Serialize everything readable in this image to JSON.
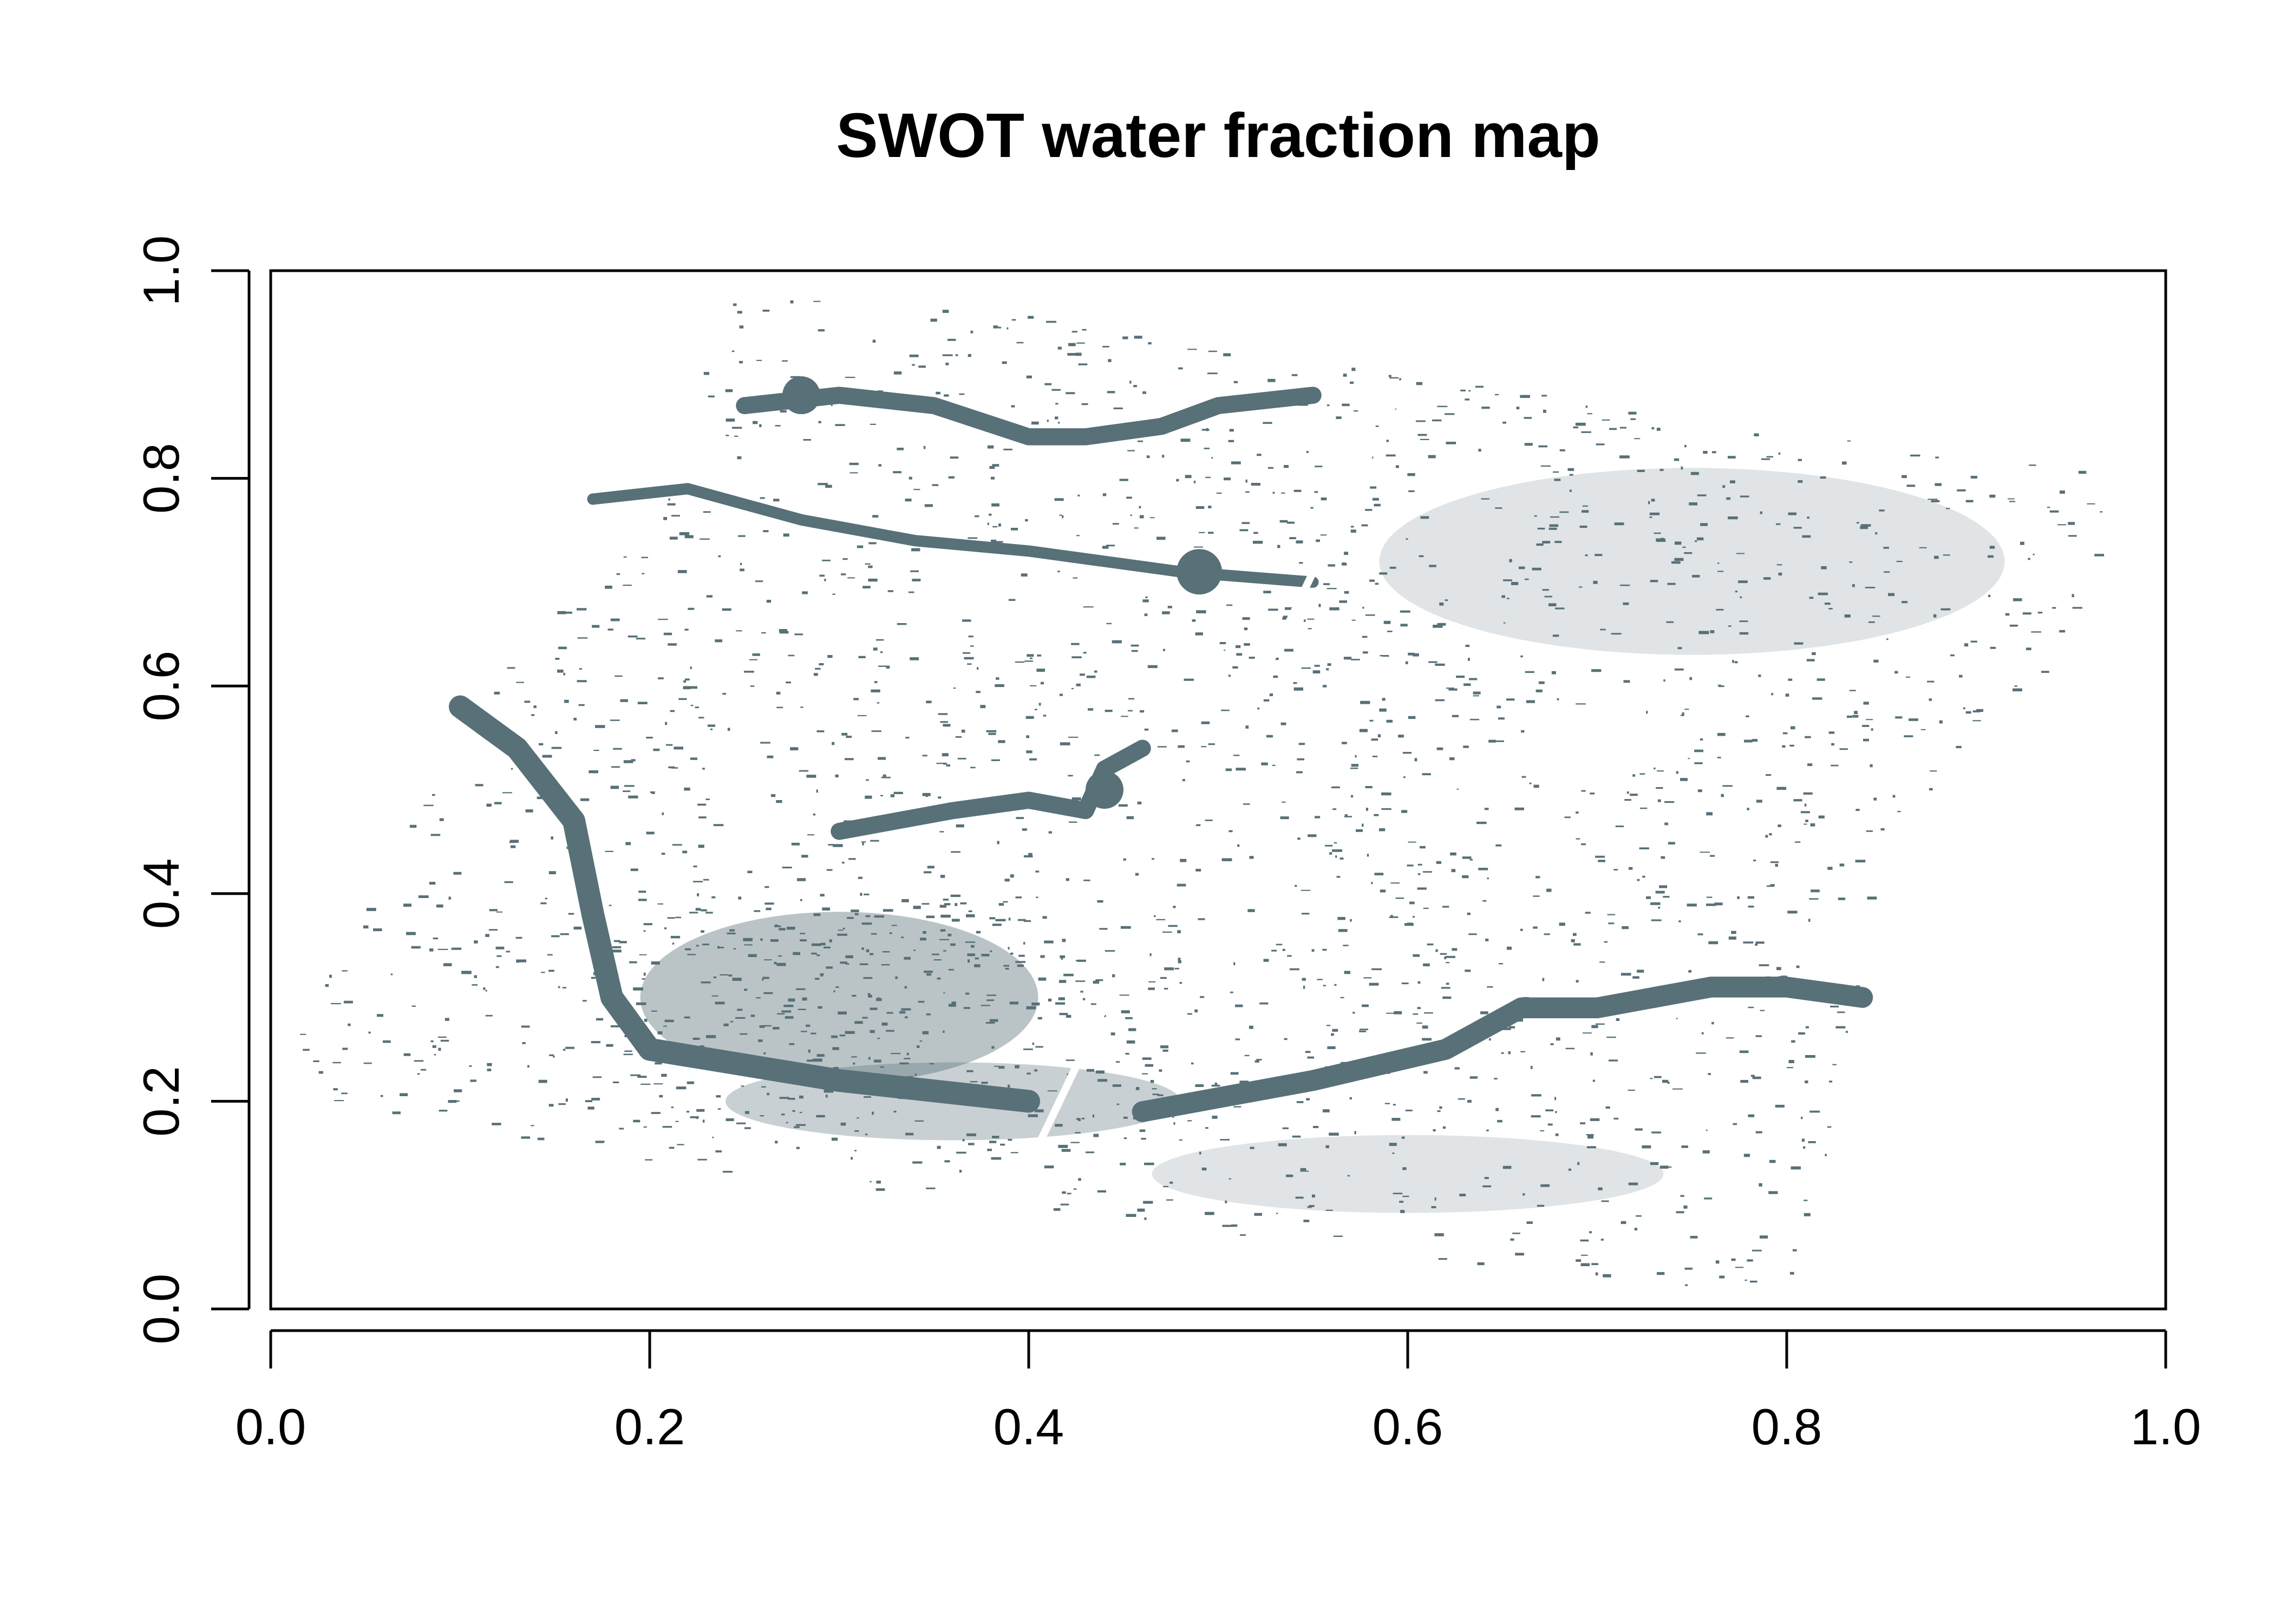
{
  "chart_data": {
    "type": "heatmap",
    "title": "SWOT water fraction map",
    "xlabel": "",
    "ylabel": "",
    "xlim": [
      0,
      1
    ],
    "ylim": [
      0,
      1
    ],
    "x_ticks": [
      "0.0",
      "0.2",
      "0.4",
      "0.6",
      "0.8",
      "1.0"
    ],
    "y_ticks": [
      "0.0",
      "0.2",
      "0.4",
      "0.6",
      "0.8",
      "1.0"
    ],
    "grid": false,
    "legend": "none",
    "colors": {
      "water": "#587078",
      "background": "#ffffff"
    },
    "swath_outline": [
      [
        0.0,
        0.21
      ],
      [
        0.1,
        0.58
      ],
      [
        0.2,
        0.76
      ],
      [
        0.24,
        0.97
      ],
      [
        0.32,
        0.98
      ],
      [
        0.6,
        0.9
      ],
      [
        0.86,
        0.83
      ],
      [
        0.99,
        0.8
      ],
      [
        0.93,
        0.6
      ],
      [
        0.85,
        0.45
      ],
      [
        0.84,
        0.3
      ],
      [
        0.82,
        0.14
      ],
      [
        0.8,
        0.01
      ],
      [
        0.6,
        0.05
      ],
      [
        0.39,
        0.1
      ],
      [
        0.2,
        0.14
      ]
    ],
    "rivers": [
      {
        "points": [
          [
            0.1,
            0.58
          ],
          [
            0.13,
            0.54
          ],
          [
            0.16,
            0.47
          ],
          [
            0.17,
            0.38
          ],
          [
            0.18,
            0.3
          ],
          [
            0.2,
            0.25
          ],
          [
            0.3,
            0.22
          ],
          [
            0.4,
            0.2
          ]
        ],
        "width": 0.012
      },
      {
        "points": [
          [
            0.46,
            0.19
          ],
          [
            0.55,
            0.22
          ],
          [
            0.62,
            0.25
          ],
          [
            0.66,
            0.29
          ],
          [
            0.7,
            0.29
          ],
          [
            0.76,
            0.31
          ],
          [
            0.8,
            0.31
          ],
          [
            0.84,
            0.3
          ]
        ],
        "width": 0.011
      },
      {
        "points": [
          [
            0.3,
            0.46
          ],
          [
            0.36,
            0.48
          ],
          [
            0.4,
            0.49
          ],
          [
            0.43,
            0.48
          ],
          [
            0.44,
            0.52
          ],
          [
            0.46,
            0.54
          ]
        ],
        "width": 0.009
      },
      {
        "points": [
          [
            0.25,
            0.87
          ],
          [
            0.3,
            0.88
          ],
          [
            0.35,
            0.87
          ],
          [
            0.4,
            0.84
          ],
          [
            0.43,
            0.84
          ],
          [
            0.47,
            0.85
          ],
          [
            0.5,
            0.87
          ],
          [
            0.55,
            0.88
          ]
        ],
        "width": 0.009
      },
      {
        "points": [
          [
            0.17,
            0.78
          ],
          [
            0.22,
            0.79
          ],
          [
            0.28,
            0.76
          ],
          [
            0.34,
            0.74
          ],
          [
            0.4,
            0.73
          ],
          [
            0.48,
            0.71
          ],
          [
            0.55,
            0.7
          ]
        ],
        "width": 0.006
      }
    ],
    "dense_zones": [
      {
        "center": [
          0.3,
          0.3
        ],
        "radius": [
          0.14,
          0.11
        ],
        "fraction": 0.75
      },
      {
        "center": [
          0.36,
          0.2
        ],
        "radius": [
          0.16,
          0.05
        ],
        "fraction": 0.6
      },
      {
        "center": [
          0.75,
          0.72
        ],
        "radius": [
          0.22,
          0.12
        ],
        "fraction": 0.35
      },
      {
        "center": [
          0.6,
          0.13
        ],
        "radius": [
          0.18,
          0.05
        ],
        "fraction": 0.35
      }
    ],
    "nadir_gap": [
      [
        0.39,
        0.1
      ],
      [
        0.6,
        0.9
      ]
    ],
    "lakes": [
      {
        "center": [
          0.49,
          0.71
        ],
        "radius": 0.012
      },
      {
        "center": [
          0.44,
          0.5
        ],
        "radius": 0.01
      },
      {
        "center": [
          0.28,
          0.88
        ],
        "radius": 0.01
      }
    ]
  }
}
